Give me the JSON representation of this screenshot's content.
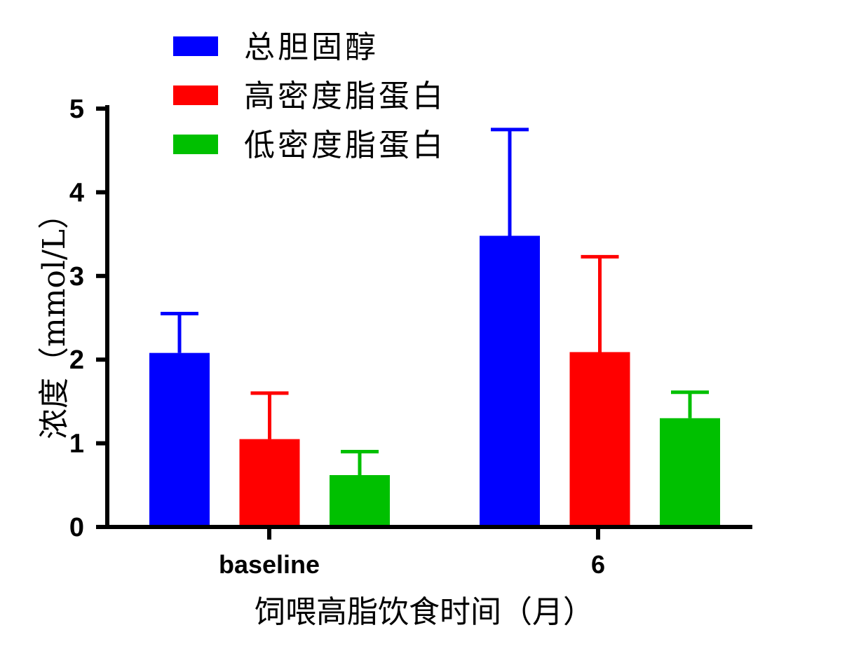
{
  "chart_data": {
    "type": "bar",
    "categories": [
      "baseline",
      "6"
    ],
    "series": [
      {
        "name": "总胆固醇",
        "color": "#0000ff",
        "values": [
          2.08,
          3.48
        ],
        "errors": [
          0.47,
          1.27
        ]
      },
      {
        "name": "高密度脂蛋白",
        "color": "#ff0000",
        "values": [
          1.05,
          2.09
        ],
        "errors": [
          0.55,
          1.14
        ]
      },
      {
        "name": "低密度脂蛋白",
        "color": "#00c000",
        "values": [
          0.62,
          1.3
        ],
        "errors": [
          0.28,
          0.31
        ]
      }
    ],
    "xlabel": "饲喂高脂饮食时间（月）",
    "ylabel": "浓度（mmol/L）",
    "ylim": [
      0,
      5
    ],
    "yticks": [
      0,
      1,
      2,
      3,
      4,
      5
    ],
    "grid": false,
    "legend_position": "top-left"
  }
}
